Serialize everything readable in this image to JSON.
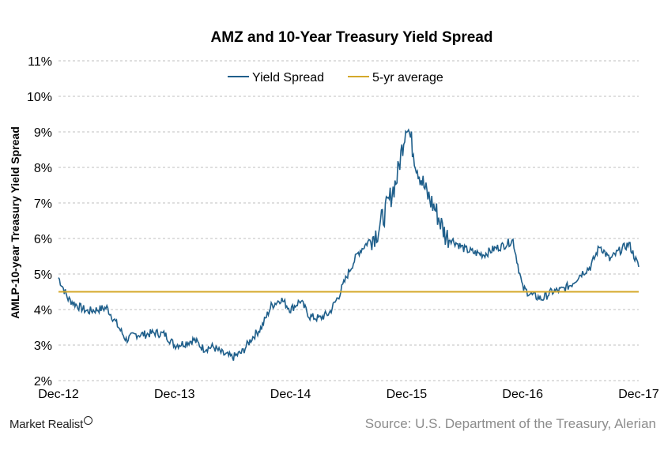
{
  "chart_data": {
    "type": "line",
    "title": "AMZ  and 10-Year  Treasury  Yield Spread",
    "ylabel": "AMLP-10-year Treasury Yield Spread",
    "xlabel": "",
    "x_ticks": [
      "Dec-12",
      "Dec-13",
      "Dec-14",
      "Dec-15",
      "Dec-16",
      "Dec-17"
    ],
    "y_ticks": [
      "2%",
      "3%",
      "4%",
      "5%",
      "6%",
      "7%",
      "8%",
      "9%",
      "10%",
      "11%"
    ],
    "ylim": [
      2,
      11
    ],
    "xlim": [
      "2012-12",
      "2017-12"
    ],
    "grid": "horizontal dashed",
    "legend_position": "top-center",
    "series": [
      {
        "name": "Yield Spread",
        "color": "#1f5f8b",
        "x": [
          "2012-12",
          "2013-01",
          "2013-02",
          "2013-03",
          "2013-04",
          "2013-05",
          "2013-06",
          "2013-07",
          "2013-08",
          "2013-09",
          "2013-10",
          "2013-11",
          "2013-12",
          "2014-01",
          "2014-02",
          "2014-03",
          "2014-04",
          "2014-05",
          "2014-06",
          "2014-07",
          "2014-08",
          "2014-09",
          "2014-10",
          "2014-11",
          "2014-12",
          "2015-01",
          "2015-02",
          "2015-03",
          "2015-04",
          "2015-05",
          "2015-06",
          "2015-07",
          "2015-08",
          "2015-09",
          "2015-10",
          "2015-11",
          "2015-12",
          "2016-01",
          "2016-02",
          "2016-03",
          "2016-04",
          "2016-05",
          "2016-06",
          "2016-07",
          "2016-08",
          "2016-09",
          "2016-10",
          "2016-11",
          "2016-12",
          "2017-01",
          "2017-02",
          "2017-03",
          "2017-04",
          "2017-05",
          "2017-06",
          "2017-07",
          "2017-08",
          "2017-09",
          "2017-10",
          "2017-11",
          "2017-12"
        ],
        "values": [
          4.9,
          4.3,
          4.1,
          3.95,
          4.0,
          4.05,
          3.6,
          3.15,
          3.3,
          3.3,
          3.35,
          3.3,
          3.0,
          3.05,
          3.15,
          2.9,
          2.95,
          2.75,
          2.65,
          2.8,
          3.2,
          3.5,
          4.1,
          4.3,
          4.0,
          4.25,
          3.8,
          3.75,
          3.9,
          4.4,
          5.05,
          5.6,
          5.9,
          6.2,
          6.9,
          7.7,
          9.3,
          8.1,
          7.3,
          6.8,
          6.1,
          5.9,
          5.7,
          5.6,
          5.55,
          5.7,
          5.8,
          5.95,
          4.6,
          4.4,
          4.3,
          4.5,
          4.55,
          4.7,
          5.0,
          5.2,
          5.8,
          5.4,
          5.65,
          5.85,
          5.2
        ]
      },
      {
        "name": "5-yr average",
        "color": "#d4a82a",
        "x": [
          "2012-12",
          "2017-12"
        ],
        "values": [
          4.5,
          4.5
        ]
      }
    ]
  },
  "source": "Source: U.S. Department of the Treasury, Alerian",
  "brand": "Market Realist"
}
